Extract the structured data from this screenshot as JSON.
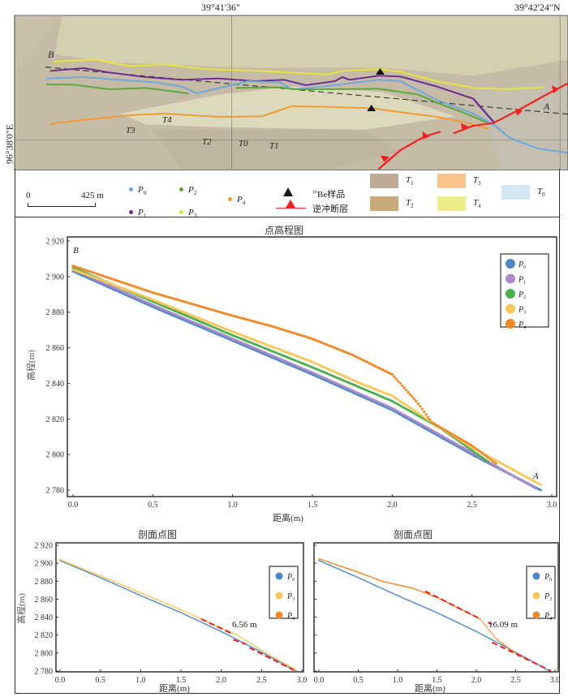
{
  "map": {
    "coord_top_1": "39°41'36\"",
    "coord_top_2": "39°42'24\"N",
    "coord_left": "96°38'0\"E",
    "point_B": "B",
    "point_A": "A",
    "terrace_labels": [
      "T3",
      "T4",
      "T2",
      "T0",
      "T1"
    ],
    "colors": {
      "P0": "#6fa8dc",
      "P1": "#6a2c91",
      "P2": "#5aa83c",
      "P3": "#e6e63c",
      "P4": "#f29a30",
      "fault": "#ee2222"
    }
  },
  "legend": {
    "scale_start": "0",
    "scale_end": "425 m",
    "profiles": [
      {
        "label": "P",
        "sub": "0",
        "color": "#6fa8dc"
      },
      {
        "label": "P",
        "sub": "1",
        "color": "#6a2c91"
      },
      {
        "label": "P",
        "sub": "2",
        "color": "#5aa83c"
      },
      {
        "label": "P",
        "sub": "3",
        "color": "#e0e040"
      },
      {
        "label": "P",
        "sub": "4",
        "color": "#f29a30"
      }
    ],
    "be_sample_sup": "10",
    "be_sample": "Be样品",
    "thrust_fault": "逆冲断层",
    "terraces": [
      {
        "label": "T",
        "sub": "1",
        "color": "#bcab96"
      },
      {
        "label": "T",
        "sub": "2",
        "color": "#c9a97a"
      },
      {
        "label": "T",
        "sub": "3",
        "color": "#f9c48a"
      },
      {
        "label": "T",
        "sub": "4",
        "color": "#eded8a"
      },
      {
        "label": "T",
        "sub": "0",
        "color": "#d3e8f3"
      }
    ]
  },
  "chart_data": [
    {
      "type": "scatter",
      "title": "点高程图",
      "xlabel": "距离(m)",
      "ylabel": "高程(m)",
      "xlim": [
        0,
        3.0
      ],
      "ylim": [
        2780,
        2920
      ],
      "xticks": [
        "0.0",
        "0.5",
        "1.0",
        "1.5",
        "2.0",
        "2.5",
        "3.0"
      ],
      "yticks": [
        "2 780",
        "2 800",
        "2 820",
        "2 840",
        "2 860",
        "2 880",
        "2 900",
        "2 920"
      ],
      "legend_position": "top-right",
      "annotations": [
        "B",
        "A"
      ],
      "series": [
        {
          "name": "P0",
          "color": "#4f86c6",
          "points": [
            [
              0,
              2903
            ],
            [
              0.5,
              2883
            ],
            [
              1,
              2864
            ],
            [
              1.5,
              2845
            ],
            [
              2,
              2825
            ],
            [
              2.5,
              2800
            ],
            [
              2.93,
              2780
            ]
          ]
        },
        {
          "name": "P1",
          "color": "#a88bc9",
          "points": [
            [
              0,
              2904
            ],
            [
              0.5,
              2884
            ],
            [
              1,
              2865
            ],
            [
              1.5,
              2846
            ],
            [
              2,
              2826
            ],
            [
              2.5,
              2801
            ],
            [
              2.9,
              2781
            ]
          ]
        },
        {
          "name": "P2",
          "color": "#4caf50",
          "points": [
            [
              0,
              2905
            ],
            [
              0.5,
              2886
            ],
            [
              1,
              2867
            ],
            [
              1.5,
              2849
            ],
            [
              2,
              2830
            ],
            [
              2.3,
              2815
            ],
            [
              2.6,
              2796
            ]
          ]
        },
        {
          "name": "P3",
          "color": "#f7c75a",
          "points": [
            [
              0,
              2904
            ],
            [
              0.5,
              2887
            ],
            [
              1,
              2869
            ],
            [
              1.5,
              2852
            ],
            [
              1.8,
              2840
            ],
            [
              2,
              2833
            ],
            [
              2.25,
              2818
            ],
            [
              2.5,
              2804
            ],
            [
              2.93,
              2783
            ]
          ]
        },
        {
          "name": "P4",
          "color": "#ef8a2a",
          "points": [
            [
              0,
              2906
            ],
            [
              0.5,
              2891
            ],
            [
              1,
              2878
            ],
            [
              1.25,
              2872
            ],
            [
              1.5,
              2865
            ],
            [
              1.75,
              2856
            ],
            [
              2,
              2845
            ],
            [
              2.15,
              2830
            ],
            [
              2.25,
              2818
            ],
            [
              2.5,
              2805
            ],
            [
              2.65,
              2795
            ]
          ]
        }
      ]
    },
    {
      "type": "scatter",
      "title": "剖面点图",
      "xlabel": "距离(m)",
      "ylabel": "高程(m)",
      "xlim": [
        0,
        3.0
      ],
      "ylim": [
        2780,
        2920
      ],
      "xticks": [
        "0.0",
        "0.5",
        "1.0",
        "1.5",
        "2.0",
        "2.5",
        "3.0"
      ],
      "yticks": [
        "2 780",
        "2 800",
        "2 820",
        "2 840",
        "2 860",
        "2 880",
        "2 900",
        "2 920"
      ],
      "legend_position": "top-right",
      "legend": [
        "P0",
        "P3",
        "P4"
      ],
      "annotation": "6.56 m",
      "series": [
        {
          "name": "P0",
          "color": "#4f86c6",
          "points": [
            [
              0,
              2903
            ],
            [
              0.5,
              2884
            ],
            [
              1,
              2864
            ],
            [
              1.5,
              2845
            ],
            [
              2,
              2824
            ],
            [
              2.5,
              2801
            ],
            [
              2.93,
              2780
            ]
          ]
        },
        {
          "name": "P3",
          "color": "#f7c75a",
          "points": [
            [
              0,
              2904
            ],
            [
              0.5,
              2886
            ],
            [
              1,
              2867
            ],
            [
              1.4,
              2852
            ],
            [
              1.75,
              2838
            ],
            [
              2.2,
              2820
            ],
            [
              2.5,
              2803
            ],
            [
              2.93,
              2781
            ]
          ]
        }
      ],
      "fit_lines": [
        [
          [
            1.75,
            2838
          ],
          [
            2.15,
            2821
          ]
        ],
        [
          [
            2.15,
            2815
          ],
          [
            2.3,
            2810
          ]
        ],
        [
          [
            2.35,
            2806
          ],
          [
            2.9,
            2781
          ]
        ]
      ],
      "fit_color": "#e82020"
    },
    {
      "type": "scatter",
      "title": "剖面点图",
      "xlabel": "距离(m)",
      "ylabel": "",
      "xlim": [
        0,
        3.0
      ],
      "ylim": [
        2780,
        2920
      ],
      "xticks": [
        "0.0",
        "0.5",
        "1.0",
        "1.5",
        "2.0",
        "2.5",
        "3.0"
      ],
      "legend_position": "top-right",
      "legend": [
        "P0",
        "P3",
        "P4"
      ],
      "annotation": "16.09 m",
      "series": [
        {
          "name": "P0",
          "color": "#4f86c6",
          "points": [
            [
              0,
              2903
            ],
            [
              0.5,
              2884
            ],
            [
              1,
              2864
            ],
            [
              1.5,
              2845
            ],
            [
              2,
              2824
            ],
            [
              2.5,
              2801
            ],
            [
              2.93,
              2780
            ]
          ]
        },
        {
          "name": "P4",
          "color": "#ef8a2a",
          "points": [
            [
              0,
              2905
            ],
            [
              0.5,
              2890
            ],
            [
              0.8,
              2880
            ],
            [
              1.2,
              2872
            ],
            [
              1.5,
              2862
            ],
            [
              1.75,
              2851
            ],
            [
              2.05,
              2838
            ],
            [
              2.15,
              2827
            ],
            [
              2.25,
              2816
            ],
            [
              2.45,
              2803
            ],
            [
              2.6,
              2795
            ]
          ]
        },
        {
          "name": "P3",
          "color": "#e6e63c",
          "points": [
            [
              3.02,
              2783
            ]
          ]
        }
      ],
      "fit_lines": [
        [
          [
            1.35,
            2869
          ],
          [
            2.05,
            2838
          ]
        ],
        [
          [
            2.15,
            2834
          ],
          [
            2.2,
            2832
          ]
        ],
        [
          [
            2.2,
            2812
          ],
          [
            2.95,
            2780
          ]
        ]
      ],
      "fit_color": "#e82020"
    }
  ]
}
